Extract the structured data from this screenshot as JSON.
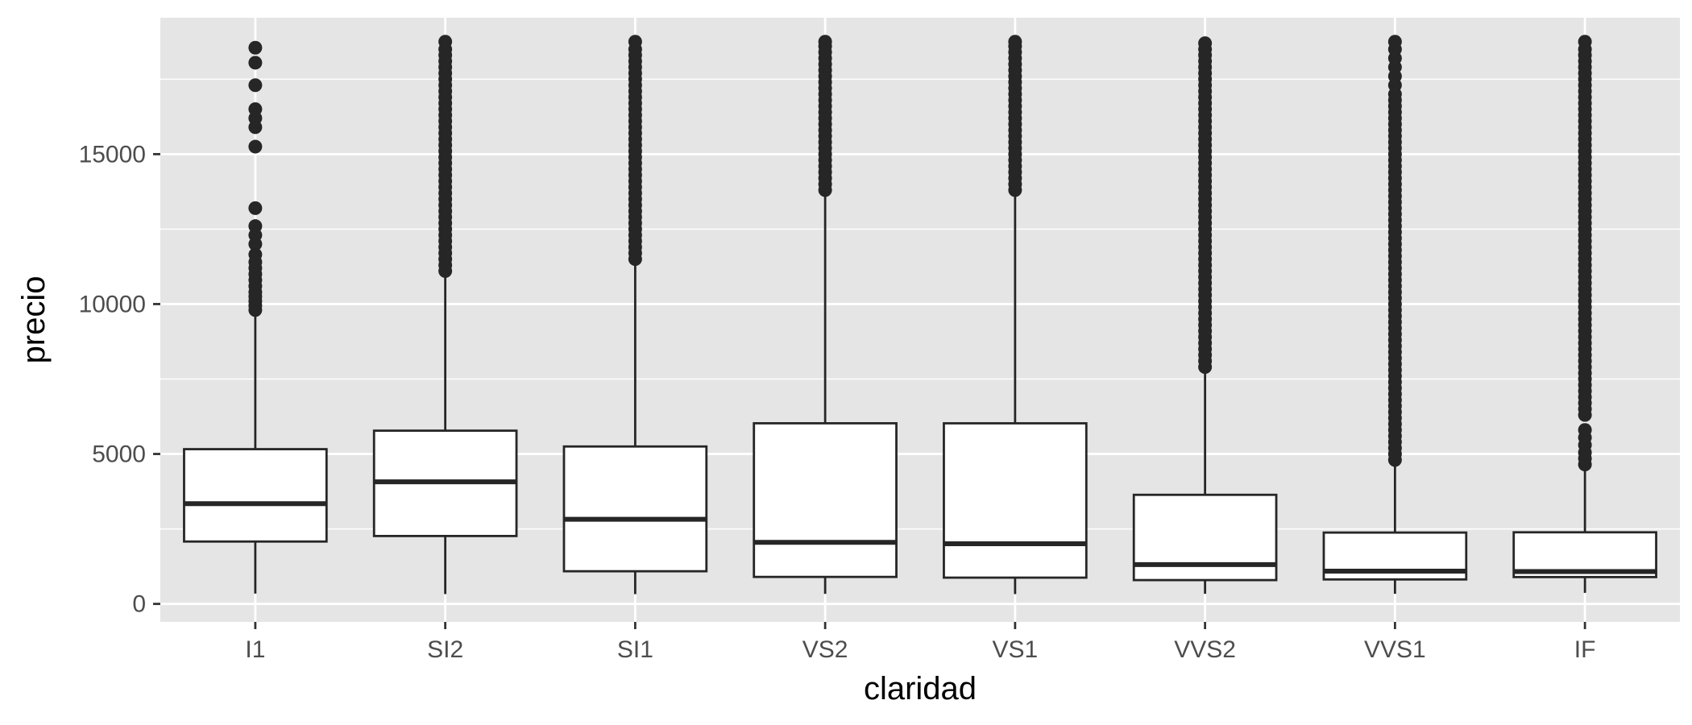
{
  "chart_data": {
    "type": "boxplot",
    "xlabel": "claridad",
    "ylabel": "precio",
    "ylim": [
      -600,
      19550
    ],
    "yticks": [
      0,
      5000,
      10000,
      15000
    ],
    "grid": true,
    "colors": {
      "panel_background": "#e5e5e5",
      "grid_line": "#ffffff",
      "box_fill": "#ffffff",
      "box_stroke": "#262626",
      "outlier": "#262626",
      "tick_text": "#4d4d4d",
      "axis_title": "#000000"
    },
    "categories": [
      "I1",
      "SI2",
      "SI1",
      "VS2",
      "VS1",
      "VVS2",
      "VVS1",
      "IF"
    ],
    "boxes": [
      {
        "category": "I1",
        "whisker_low": 345,
        "q1": 2080,
        "median": 3344,
        "q3": 5161,
        "whisker_high": 9700,
        "outliers": [
          9800,
          9950,
          10100,
          10250,
          10400,
          10600,
          10800,
          11000,
          11200,
          11400,
          11650,
          12000,
          12300,
          12600,
          13200,
          15250,
          15900,
          16200,
          16500,
          17300,
          18050,
          18550
        ]
      },
      {
        "category": "SI2",
        "whisker_low": 326,
        "q1": 2264,
        "median": 4072,
        "q3": 5777,
        "whisker_high": 11000,
        "outliers": [
          11100,
          11300,
          11500,
          11700,
          11900,
          12100,
          12300,
          12500,
          12700,
          12900,
          13100,
          13300,
          13500,
          13700,
          13900,
          14100,
          14300,
          14500,
          14700,
          14900,
          15100,
          15300,
          15500,
          15700,
          15900,
          16100,
          16300,
          16500,
          16700,
          16900,
          17100,
          17300,
          17500,
          17700,
          17900,
          18100,
          18300,
          18500,
          18750
        ]
      },
      {
        "category": "SI1",
        "whisker_low": 326,
        "q1": 1089,
        "median": 2822,
        "q3": 5250,
        "whisker_high": 11400,
        "outliers": [
          11500,
          11700,
          11900,
          12100,
          12300,
          12500,
          12700,
          12900,
          13100,
          13300,
          13500,
          13700,
          13900,
          14100,
          14300,
          14500,
          14700,
          14900,
          15100,
          15300,
          15500,
          15700,
          15900,
          16100,
          16300,
          16500,
          16700,
          16900,
          17100,
          17300,
          17500,
          17700,
          17900,
          18100,
          18300,
          18500,
          18750
        ]
      },
      {
        "category": "VS2",
        "whisker_low": 334,
        "q1": 900,
        "median": 2054,
        "q3": 6024,
        "whisker_high": 13700,
        "outliers": [
          13800,
          14000,
          14200,
          14400,
          14600,
          14800,
          15000,
          15200,
          15400,
          15600,
          15800,
          16000,
          16200,
          16400,
          16600,
          16800,
          17000,
          17200,
          17400,
          17600,
          17800,
          18000,
          18200,
          18400,
          18600,
          18750
        ]
      },
      {
        "category": "VS1",
        "whisker_low": 327,
        "q1": 876,
        "median": 2005,
        "q3": 6023,
        "whisker_high": 13700,
        "outliers": [
          13800,
          14000,
          14200,
          14400,
          14600,
          14800,
          15000,
          15200,
          15400,
          15600,
          15800,
          16000,
          16200,
          16400,
          16600,
          16800,
          17000,
          17200,
          17400,
          17600,
          17800,
          18000,
          18200,
          18400,
          18600,
          18750
        ]
      },
      {
        "category": "VVS2",
        "whisker_low": 336,
        "q1": 794,
        "median": 1311,
        "q3": 3638,
        "whisker_high": 7800,
        "outliers": [
          7900,
          8100,
          8300,
          8500,
          8700,
          8900,
          9100,
          9300,
          9500,
          9700,
          9900,
          10100,
          10300,
          10500,
          10700,
          10900,
          11100,
          11300,
          11500,
          11700,
          11900,
          12100,
          12300,
          12500,
          12700,
          12900,
          13100,
          13300,
          13500,
          13700,
          13900,
          14100,
          14300,
          14500,
          14700,
          14900,
          15100,
          15300,
          15500,
          15700,
          15900,
          16100,
          16300,
          16500,
          16700,
          16900,
          17100,
          17300,
          17500,
          17700,
          17900,
          18100,
          18300,
          18500,
          18700
        ]
      },
      {
        "category": "VVS1",
        "whisker_low": 336,
        "q1": 816,
        "median": 1093,
        "q3": 2379,
        "whisker_high": 4700,
        "outliers": [
          4800,
          5000,
          5200,
          5400,
          5600,
          5800,
          6000,
          6200,
          6400,
          6600,
          6800,
          7000,
          7200,
          7400,
          7600,
          7800,
          8000,
          8200,
          8400,
          8600,
          8800,
          9000,
          9200,
          9400,
          9600,
          9800,
          10000,
          10200,
          10400,
          10600,
          10800,
          11000,
          11200,
          11400,
          11600,
          11800,
          12000,
          12200,
          12400,
          12600,
          12800,
          13000,
          13200,
          13400,
          13600,
          13800,
          14000,
          14200,
          14400,
          14600,
          14800,
          15000,
          15200,
          15400,
          15600,
          15800,
          16000,
          16200,
          16400,
          16600,
          16800,
          17000,
          17300,
          17600,
          17900,
          18200,
          18500,
          18750
        ]
      },
      {
        "category": "IF",
        "whisker_low": 369,
        "q1": 895,
        "median": 1080,
        "q3": 2388,
        "whisker_high": 4500,
        "outliers": [
          4650,
          4850,
          5050,
          5300,
          5550,
          5800,
          6300,
          6500,
          6700,
          6900,
          7100,
          7300,
          7500,
          7700,
          7900,
          8100,
          8300,
          8500,
          8700,
          8900,
          9100,
          9300,
          9500,
          9700,
          9900,
          10100,
          10300,
          10500,
          10700,
          10900,
          11100,
          11300,
          11500,
          11700,
          11900,
          12100,
          12300,
          12500,
          12700,
          12900,
          13100,
          13300,
          13500,
          13700,
          13900,
          14100,
          14300,
          14500,
          14700,
          14900,
          15100,
          15300,
          15500,
          15700,
          15900,
          16100,
          16300,
          16500,
          16700,
          16900,
          17100,
          17300,
          17500,
          17700,
          17900,
          18100,
          18300,
          18500,
          18750
        ]
      }
    ]
  }
}
